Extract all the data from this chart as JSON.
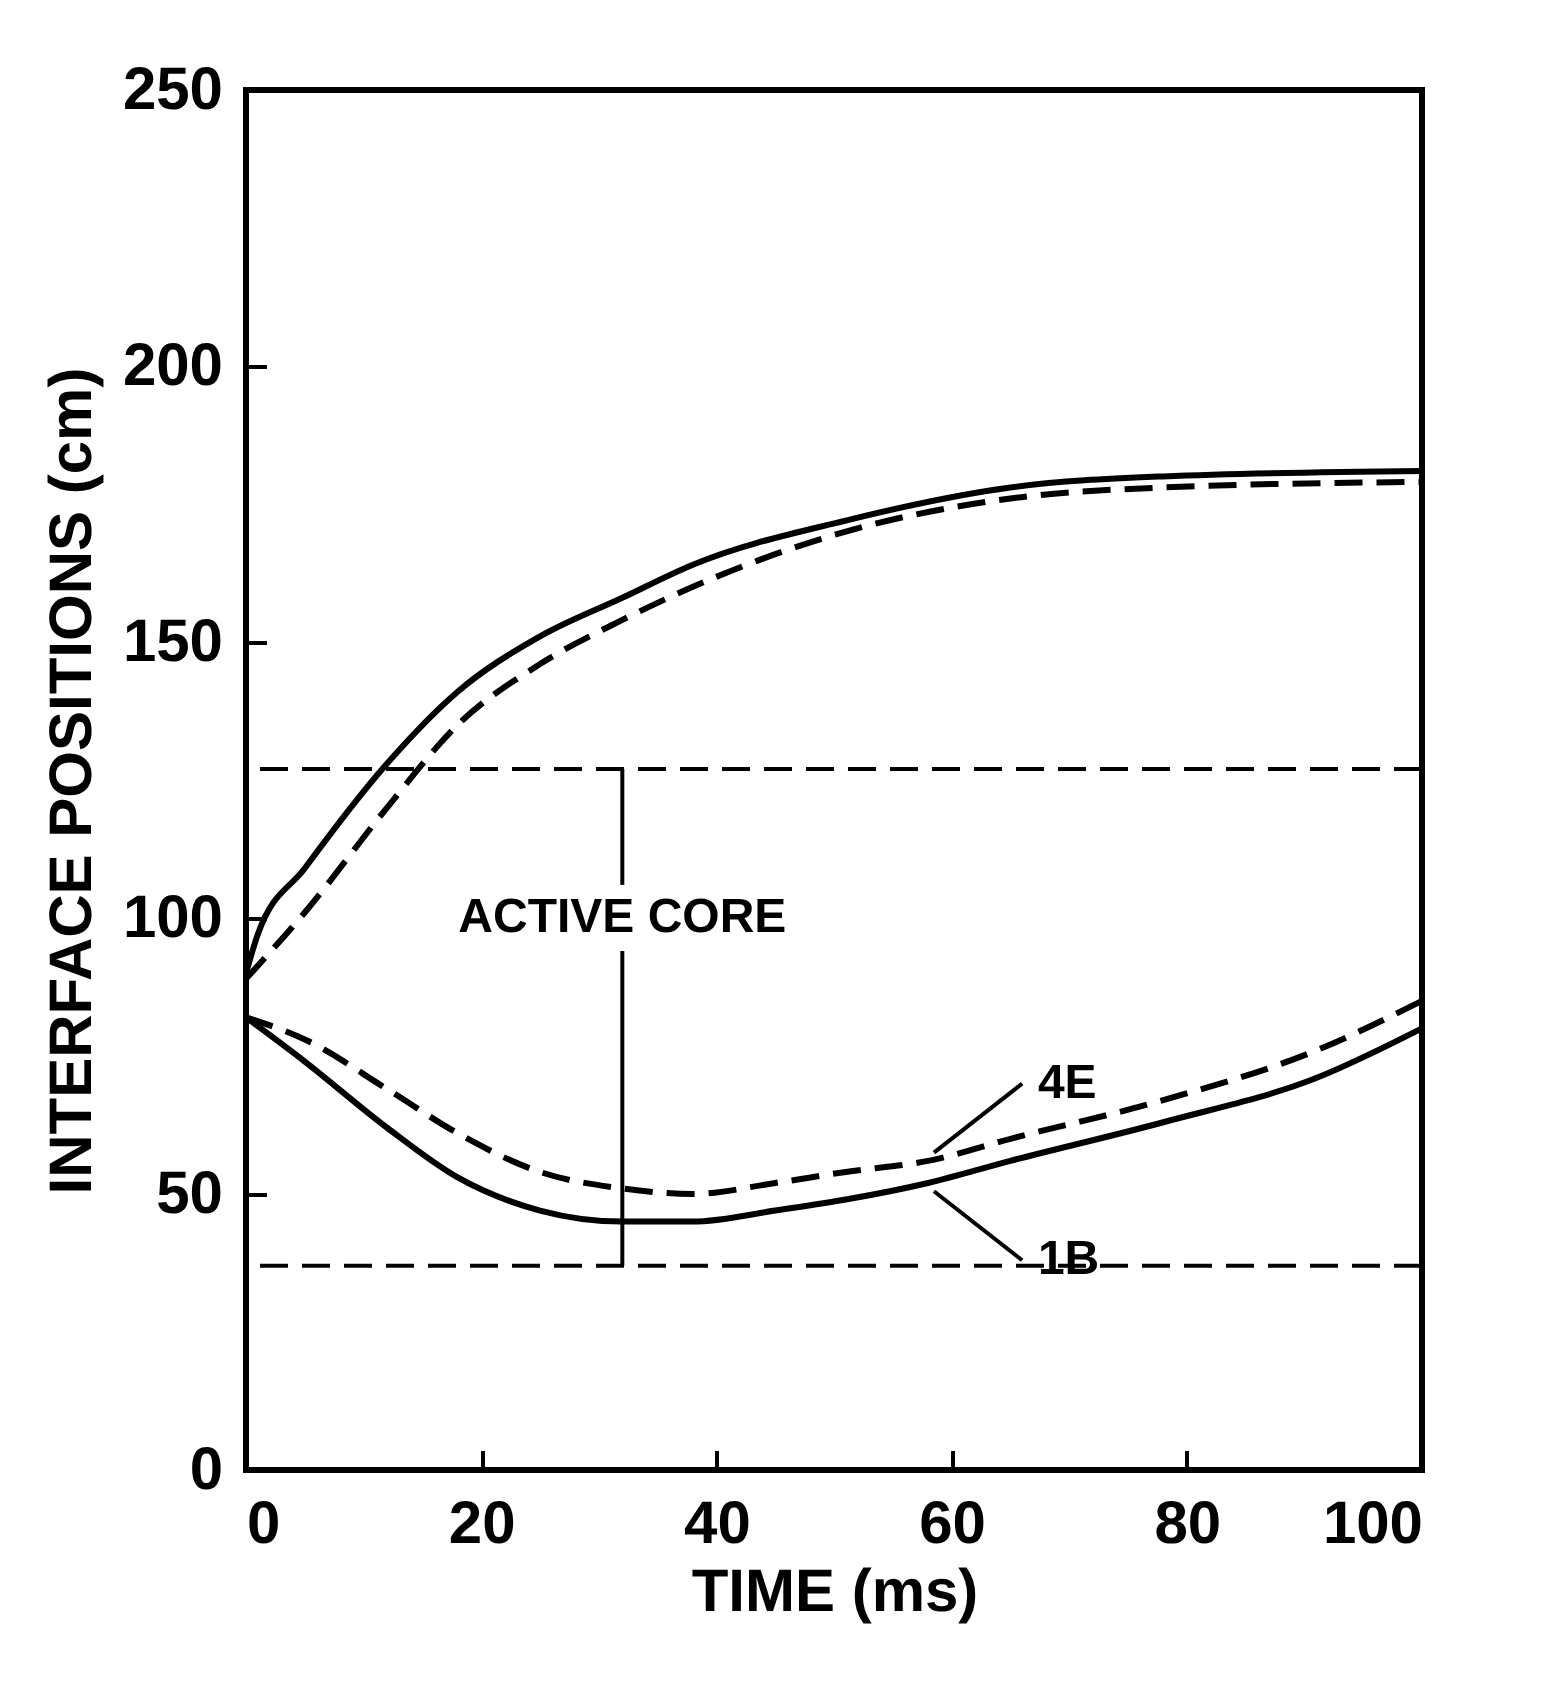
{
  "chart_data": {
    "type": "line",
    "xlabel": "TIME (ms)",
    "ylabel": "INTERFACE POSITIONS (cm)",
    "xlim": [
      0,
      100
    ],
    "xticks": [
      0,
      20,
      40,
      60,
      80,
      100
    ],
    "ylim": [
      0,
      250
    ],
    "yticks": [
      0,
      50,
      100,
      150,
      200,
      250
    ],
    "grid": false,
    "series": [
      {
        "color": "#000000",
        "line_style": "solid",
        "x": [
          0,
          1,
          5,
          12,
          18,
          25,
          32,
          38,
          51,
          65,
          78,
          100
        ],
        "values": [
          90,
          97,
          109,
          128,
          141,
          151,
          158,
          164,
          172,
          178,
          180,
          181
        ]
      },
      {
        "color": "#000000",
        "line_style": "dashed",
        "x": [
          0,
          5,
          12,
          18,
          25,
          32,
          38,
          51,
          65,
          78,
          100
        ],
        "values": [
          89,
          101,
          120,
          135,
          146,
          154,
          160,
          170,
          176,
          178,
          179
        ]
      },
      {
        "name": "1B",
        "color": "#000000",
        "line_style": "solid",
        "x": [
          0,
          5,
          12,
          18,
          25,
          32,
          38,
          45,
          51,
          58,
          65,
          78,
          91,
          100
        ],
        "values": [
          82,
          74,
          62,
          53,
          47,
          45,
          45,
          47,
          49,
          52,
          56,
          63,
          71,
          80
        ]
      },
      {
        "name": "4E",
        "color": "#000000",
        "line_style": "dashed",
        "x": [
          0,
          5,
          12,
          18,
          25,
          32,
          38,
          45,
          51,
          58,
          65,
          78,
          91,
          100
        ],
        "values": [
          82,
          78,
          69,
          61,
          54,
          51,
          50,
          52,
          54,
          56,
          60,
          67,
          76,
          85
        ]
      }
    ],
    "ref_lines": [
      {
        "axis": "y",
        "value": 127,
        "line_style": "dashed",
        "color": "#000000"
      },
      {
        "axis": "y",
        "value": 37,
        "line_style": "dashed",
        "color": "#000000"
      }
    ],
    "annotations": [
      {
        "text": "ACTIVE CORE",
        "x": 32,
        "y": 127
      }
    ]
  }
}
